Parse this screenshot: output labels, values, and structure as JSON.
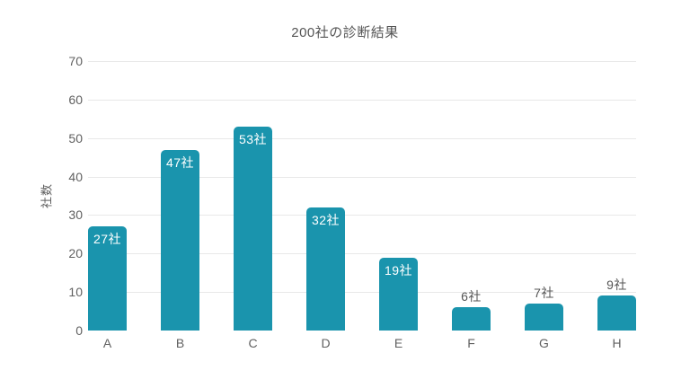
{
  "page": {
    "background": "#ffffff"
  },
  "chart_data": {
    "type": "bar",
    "title": "200社の診断結果",
    "xlabel": "",
    "ylabel": "社数",
    "categories": [
      "A",
      "B",
      "C",
      "D",
      "E",
      "F",
      "G",
      "H"
    ],
    "values": [
      27,
      47,
      53,
      32,
      19,
      6,
      7,
      9
    ],
    "value_labels": [
      "27社",
      "47社",
      "53社",
      "32社",
      "19社",
      "6社",
      "7社",
      "9社"
    ],
    "yticks": [
      0,
      10,
      20,
      30,
      40,
      50,
      60,
      70
    ],
    "ylim": [
      0,
      70
    ],
    "grid": "horizontal-only, no line at 0",
    "legend": "none",
    "colors": {
      "bar": "#1a94ad",
      "gridline": "#e8e8e8",
      "axis_text": "#616161",
      "title_text": "#545454",
      "value_label_inside": "#ffffff",
      "value_label_outside": "#565656"
    }
  }
}
